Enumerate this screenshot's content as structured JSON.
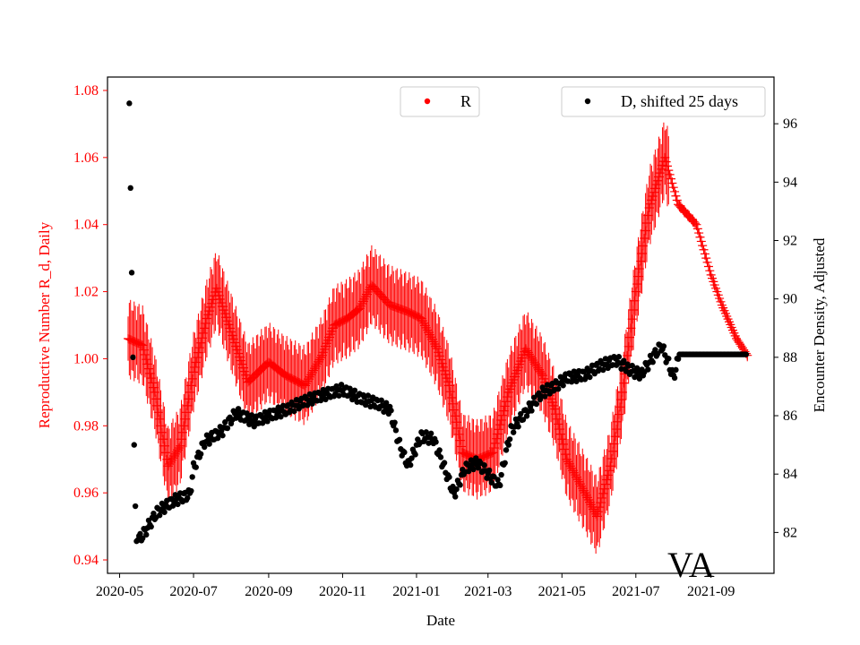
{
  "chart_data": {
    "type": "scatter",
    "xlabel": "Date",
    "ylabel_left": "Reproductive Number R_d, Daily",
    "ylabel_right": "Encounter Density, Adjusted",
    "annotation": "VA",
    "x_range": [
      "2020-04-21",
      "2021-10-23"
    ],
    "x_ticks": [
      "2020-05",
      "2020-07",
      "2020-09",
      "2020-11",
      "2021-01",
      "2021-03",
      "2021-05",
      "2021-07",
      "2021-09"
    ],
    "y_left": {
      "range": [
        0.936,
        1.084
      ],
      "ticks": [
        "0.94",
        "0.96",
        "0.98",
        "1.00",
        "1.02",
        "1.04",
        "1.06",
        "1.08"
      ]
    },
    "y_right": {
      "range": [
        80.6,
        97.6
      ],
      "ticks": [
        "82",
        "84",
        "86",
        "88",
        "90",
        "92",
        "94",
        "96"
      ]
    },
    "colors": {
      "r": "#ff0000",
      "d": "#000000",
      "left_axis": "#ff0000",
      "right_axis": "#000000"
    },
    "legend": {
      "r_label": "R",
      "d_label": "D, shifted 25 days",
      "r_position": "upper-center",
      "d_position": "upper-right"
    },
    "series": [
      {
        "name": "R",
        "axis": "left",
        "marker": "plus",
        "err": 0.012,
        "points": [
          [
            "2020-05-08",
            1.006
          ],
          [
            "2020-05-20",
            1.004
          ],
          [
            "2020-05-30",
            0.99
          ],
          [
            "2020-06-10",
            0.968
          ],
          [
            "2020-06-20",
            0.974
          ],
          [
            "2020-07-01",
            0.996
          ],
          [
            "2020-07-12",
            1.012
          ],
          [
            "2020-07-20",
            1.021
          ],
          [
            "2020-08-01",
            1.008
          ],
          [
            "2020-08-15",
            0.993
          ],
          [
            "2020-09-01",
            0.999
          ],
          [
            "2020-09-15",
            0.995
          ],
          [
            "2020-10-01",
            0.992
          ],
          [
            "2020-10-15",
            1.001
          ],
          [
            "2020-10-25",
            1.01
          ],
          [
            "2020-11-05",
            1.012
          ],
          [
            "2020-11-15",
            1.015
          ],
          [
            "2020-11-25",
            1.022
          ],
          [
            "2020-12-10",
            1.016
          ],
          [
            "2020-12-25",
            1.014
          ],
          [
            "2021-01-05",
            1.012
          ],
          [
            "2021-01-18",
            1.003
          ],
          [
            "2021-01-28",
            0.992
          ],
          [
            "2021-02-08",
            0.972
          ],
          [
            "2021-02-20",
            0.97
          ],
          [
            "2021-03-05",
            0.972
          ],
          [
            "2021-03-18",
            0.99
          ],
          [
            "2021-04-01",
            1.003
          ],
          [
            "2021-04-15",
            0.995
          ],
          [
            "2021-04-25",
            0.985
          ],
          [
            "2021-05-05",
            0.97
          ],
          [
            "2021-05-20",
            0.96
          ],
          [
            "2021-05-30",
            0.953
          ],
          [
            "2021-06-10",
            0.968
          ],
          [
            "2021-06-20",
            0.99
          ],
          [
            "2021-07-01",
            1.02
          ],
          [
            "2021-07-12",
            1.045
          ],
          [
            "2021-07-25",
            1.06
          ],
          [
            "2021-08-05",
            1.046
          ],
          [
            "2021-08-20",
            1.04
          ],
          [
            "2021-09-01",
            1.025
          ],
          [
            "2021-09-10",
            1.016
          ],
          [
            "2021-09-22",
            1.006
          ],
          [
            "2021-10-01",
            1.001
          ]
        ]
      },
      {
        "name": "D, shifted 25 days",
        "axis": "right",
        "marker": "dot",
        "points": [
          [
            "2020-05-09",
            96.7
          ],
          [
            "2020-05-10",
            93.8
          ],
          [
            "2020-05-11",
            90.9
          ],
          [
            "2020-05-12",
            88.0
          ],
          [
            "2020-05-13",
            85.0
          ],
          [
            "2020-05-14",
            82.9
          ],
          [
            "2020-05-15",
            81.7
          ],
          [
            "2020-05-20",
            81.9
          ],
          [
            "2020-06-01",
            82.7
          ],
          [
            "2020-06-15",
            83.1
          ],
          [
            "2020-06-28",
            83.3
          ],
          [
            "2020-07-01",
            84.2
          ],
          [
            "2020-07-10",
            85.1
          ],
          [
            "2020-07-25",
            85.5
          ],
          [
            "2020-08-05",
            86.1
          ],
          [
            "2020-08-20",
            85.8
          ],
          [
            "2020-09-01",
            86.0
          ],
          [
            "2020-09-15",
            86.2
          ],
          [
            "2020-10-01",
            86.5
          ],
          [
            "2020-10-15",
            86.7
          ],
          [
            "2020-11-01",
            86.9
          ],
          [
            "2020-11-15",
            86.6
          ],
          [
            "2020-12-01",
            86.4
          ],
          [
            "2020-12-10",
            86.2
          ],
          [
            "2020-12-18",
            85.0
          ],
          [
            "2020-12-25",
            84.3
          ],
          [
            "2021-01-05",
            85.3
          ],
          [
            "2021-01-15",
            85.2
          ],
          [
            "2021-01-25",
            84.1
          ],
          [
            "2021-02-01",
            83.3
          ],
          [
            "2021-02-10",
            84.2
          ],
          [
            "2021-02-20",
            84.4
          ],
          [
            "2021-03-01",
            84.0
          ],
          [
            "2021-03-10",
            83.6
          ],
          [
            "2021-03-20",
            85.5
          ],
          [
            "2021-04-01",
            86.1
          ],
          [
            "2021-04-15",
            86.8
          ],
          [
            "2021-04-25",
            87.0
          ],
          [
            "2021-05-05",
            87.3
          ],
          [
            "2021-05-20",
            87.4
          ],
          [
            "2021-06-01",
            87.7
          ],
          [
            "2021-06-15",
            87.9
          ],
          [
            "2021-06-25",
            87.6
          ],
          [
            "2021-07-05",
            87.4
          ],
          [
            "2021-07-15",
            88.0
          ],
          [
            "2021-07-22",
            88.4
          ],
          [
            "2021-07-28",
            87.8
          ],
          [
            "2021-08-01",
            87.3
          ],
          [
            "2021-08-06",
            88.1
          ],
          [
            "2021-09-01",
            88.1
          ],
          [
            "2021-09-30",
            88.1
          ]
        ]
      }
    ]
  }
}
